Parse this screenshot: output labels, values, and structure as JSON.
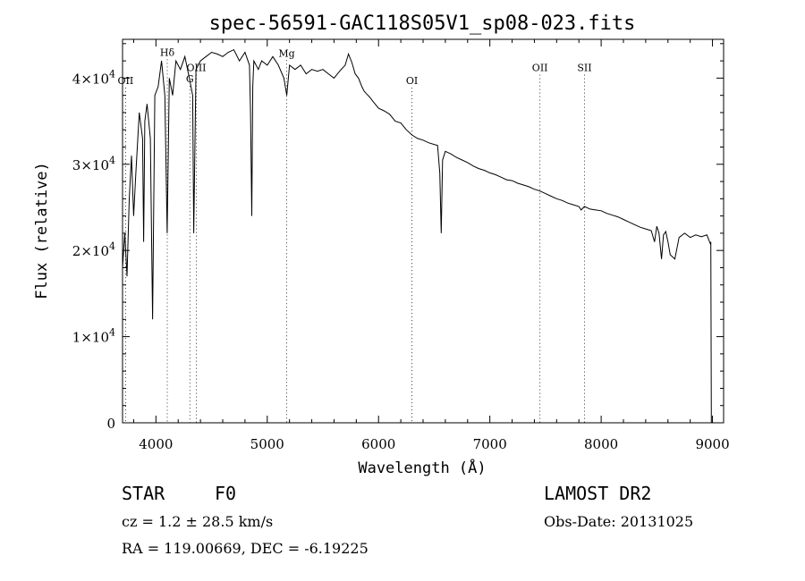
{
  "chart_data": {
    "type": "line",
    "title": "spec-56591-GAC118S05V1_sp08-023.fits",
    "xlabel": "Wavelength (Å)",
    "ylabel": "Flux (relative)",
    "xlim": [
      3700,
      9100
    ],
    "ylim": [
      0,
      44500
    ],
    "x_ticks": [
      4000,
      5000,
      6000,
      7000,
      8000,
      9000
    ],
    "x_tick_labels": [
      "4000",
      "5000",
      "6000",
      "7000",
      "8000",
      "9000"
    ],
    "y_ticks": [
      0,
      10000,
      20000,
      30000,
      40000
    ],
    "y_tick_labels": [
      {
        "mantissa": "0",
        "exp": ""
      },
      {
        "mantissa": "1×10",
        "exp": "4"
      },
      {
        "mantissa": "2×10",
        "exp": "4"
      },
      {
        "mantissa": "3×10",
        "exp": "4"
      },
      {
        "mantissa": "4×10",
        "exp": "4"
      }
    ],
    "grid": false,
    "line_markers": [
      {
        "label": "OII",
        "x": 3727,
        "label_flux": 39300
      },
      {
        "label": "Hδ",
        "x": 4102,
        "label_flux": 42600
      },
      {
        "label": "G",
        "x": 4305,
        "label_flux": 39500
      },
      {
        "label": "OIII",
        "x": 4363,
        "label_flux": 40800
      },
      {
        "label": "Mg",
        "x": 5175,
        "label_flux": 42500
      },
      {
        "label": "OI",
        "x": 6300,
        "label_flux": 39300
      },
      {
        "label": "OII",
        "x": 7450,
        "label_flux": 40800
      },
      {
        "label": "SII",
        "x": 7850,
        "label_flux": 40800
      }
    ],
    "series": [
      {
        "color": "#000000",
        "x": [
          3700,
          3720,
          3740,
          3760,
          3780,
          3800,
          3820,
          3850,
          3880,
          3890,
          3900,
          3920,
          3950,
          3970,
          3990,
          4020,
          4050,
          4080,
          4101,
          4120,
          4150,
          4180,
          4220,
          4260,
          4300,
          4330,
          4340,
          4360,
          4400,
          4450,
          4500,
          4550,
          4600,
          4650,
          4700,
          4750,
          4800,
          4840,
          4850,
          4861,
          4870,
          4880,
          4920,
          4950,
          5000,
          5050,
          5100,
          5150,
          5175,
          5200,
          5250,
          5300,
          5350,
          5400,
          5450,
          5500,
          5550,
          5600,
          5650,
          5700,
          5730,
          5760,
          5790,
          5820,
          5850,
          5870,
          5890,
          5920,
          5950,
          6000,
          6050,
          6100,
          6150,
          6200,
          6250,
          6300,
          6350,
          6400,
          6450,
          6500,
          6530,
          6550,
          6563,
          6575,
          6600,
          6650,
          6700,
          6750,
          6800,
          6850,
          6900,
          6950,
          7000,
          7050,
          7100,
          7150,
          7200,
          7250,
          7300,
          7350,
          7400,
          7450,
          7500,
          7550,
          7600,
          7650,
          7700,
          7750,
          7800,
          7820,
          7850,
          7900,
          7950,
          8000,
          8050,
          8100,
          8150,
          8200,
          8250,
          8300,
          8350,
          8400,
          8450,
          8480,
          8500,
          8520,
          8542,
          8560,
          8580,
          8600,
          8620,
          8662,
          8700,
          8750,
          8800,
          8850,
          8900,
          8950,
          8980,
          8985,
          8990
        ],
        "y": [
          18000,
          22000,
          17000,
          26000,
          31000,
          24000,
          29000,
          36000,
          33000,
          21000,
          35000,
          37000,
          33000,
          12000,
          38000,
          39000,
          42000,
          38000,
          22000,
          40000,
          38000,
          42000,
          41000,
          42500,
          40000,
          38000,
          22000,
          41000,
          42000,
          42500,
          43000,
          42800,
          42500,
          43000,
          43300,
          42000,
          43000,
          41500,
          36000,
          24000,
          39000,
          42000,
          41000,
          42000,
          41500,
          42500,
          41500,
          40000,
          38000,
          41500,
          41000,
          41500,
          40500,
          41000,
          40800,
          41000,
          40500,
          40000,
          40800,
          41500,
          42800,
          41800,
          40500,
          40000,
          39000,
          38500,
          38200,
          37800,
          37300,
          36500,
          36200,
          35800,
          35000,
          34800,
          34000,
          33400,
          33000,
          32800,
          32500,
          32300,
          32200,
          29000,
          22000,
          30500,
          31500,
          31200,
          30800,
          30500,
          30200,
          29800,
          29500,
          29300,
          29000,
          28800,
          28500,
          28200,
          28100,
          27800,
          27600,
          27400,
          27100,
          26900,
          26600,
          26300,
          26000,
          25800,
          25500,
          25300,
          25100,
          24700,
          25100,
          24800,
          24700,
          24600,
          24300,
          24100,
          23900,
          23600,
          23300,
          23000,
          22700,
          22500,
          22300,
          21000,
          22800,
          22000,
          19000,
          21800,
          22200,
          21000,
          19500,
          19000,
          21500,
          22000,
          21500,
          21800,
          21600,
          21800,
          20800,
          21000,
          0
        ]
      }
    ]
  },
  "info": {
    "object_type": "STAR",
    "subclass": "F0",
    "redshift": "cz = 1.2 ± 28.5 km/s",
    "coords": "RA = 119.00669, DEC =  -6.19225",
    "survey": "LAMOST DR2",
    "obs_date": "Obs-Date: 20131025"
  }
}
